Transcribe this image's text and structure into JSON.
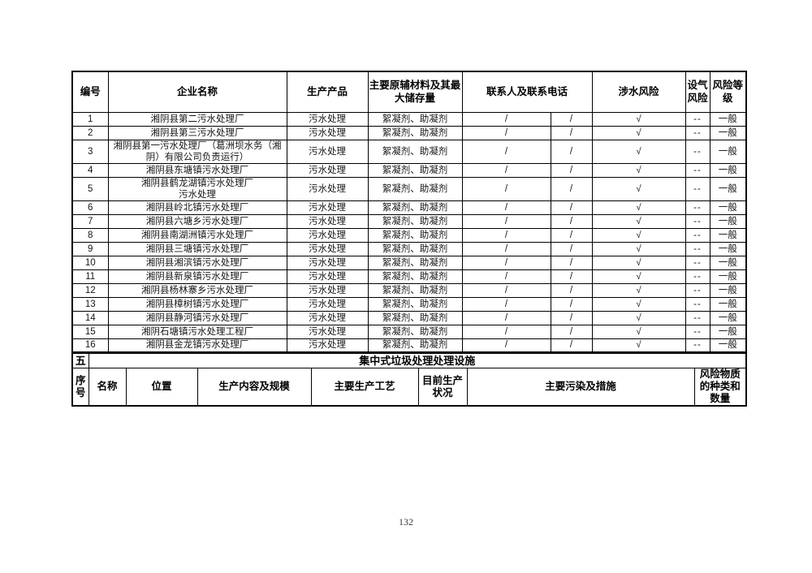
{
  "page": {
    "number": "132"
  },
  "company_table": {
    "headers": {
      "no": "编号",
      "company": "企业名称",
      "product": "生产产品",
      "materials": "主要原辅材料及其最大储存量",
      "contact": "联系人及联系电话",
      "water_risk": "涉水风险",
      "gas_risk": "设气风险",
      "risk_level": "风险等级"
    },
    "rows": [
      {
        "no": "1",
        "company": "湘阴县第二污水处理厂",
        "product": "污水处理",
        "materials": "絮凝剂、助凝剂",
        "contact1": "/",
        "contact2": "/",
        "water": "√",
        "gas": "--",
        "level": "一般"
      },
      {
        "no": "2",
        "company": "湘阴县第三污水处理厂",
        "product": "污水处理",
        "materials": "絮凝剂、助凝剂",
        "contact1": "/",
        "contact2": "/",
        "water": "√",
        "gas": "--",
        "level": "一般"
      },
      {
        "no": "3",
        "company": "湘阴县第一污水处理厂（葛洲坝水务（湘阴）有限公司负责运行）",
        "product": "污水处理",
        "materials": "絮凝剂、助凝剂",
        "contact1": "/",
        "contact2": "/",
        "water": "√",
        "gas": "--",
        "level": "一般"
      },
      {
        "no": "4",
        "company": "湘阴县东塘镇污水处理厂",
        "product": "污水处理",
        "materials": "絮凝剂、助凝剂",
        "contact1": "/",
        "contact2": "/",
        "water": "√",
        "gas": "--",
        "level": "一般"
      },
      {
        "no": "5",
        "company": "湘阴县鹤龙湖镇污水处理厂",
        "company_line2": "污水处理",
        "product": "污水处理",
        "materials": "絮凝剂、助凝剂",
        "contact1": "/",
        "contact2": "/",
        "water": "√",
        "gas": "--",
        "level": "一般"
      },
      {
        "no": "6",
        "company": "湘阴县岭北镇污水处理厂",
        "product": "污水处理",
        "materials": "絮凝剂、助凝剂",
        "contact1": "/",
        "contact2": "/",
        "water": "√",
        "gas": "--",
        "level": "一般"
      },
      {
        "no": "7",
        "company": "湘阴县六塘乡污水处理厂",
        "product": "污水处理",
        "materials": "絮凝剂、助凝剂",
        "contact1": "/",
        "contact2": "/",
        "water": "√",
        "gas": "--",
        "level": "一般"
      },
      {
        "no": "8",
        "company": "湘阴县南湖洲镇污水处理厂",
        "product": "污水处理",
        "materials": "絮凝剂、助凝剂",
        "contact1": "/",
        "contact2": "/",
        "water": "√",
        "gas": "--",
        "level": "一般"
      },
      {
        "no": "9",
        "company": "湘阴县三塘镇污水处理厂",
        "product": "污水处理",
        "materials": "絮凝剂、助凝剂",
        "contact1": "/",
        "contact2": "/",
        "water": "√",
        "gas": "--",
        "level": "一般"
      },
      {
        "no": "10",
        "company": "湘阴县湘滨镇污水处理厂",
        "product": "污水处理",
        "materials": "絮凝剂、助凝剂",
        "contact1": "/",
        "contact2": "/",
        "water": "√",
        "gas": "--",
        "level": "一般"
      },
      {
        "no": "11",
        "company": "湘阴县新泉镇污水处理厂",
        "product": "污水处理",
        "materials": "絮凝剂、助凝剂",
        "contact1": "/",
        "contact2": "/",
        "water": "√",
        "gas": "--",
        "level": "一般"
      },
      {
        "no": "12",
        "company": "湘阴县杨林寨乡污水处理厂",
        "product": "污水处理",
        "materials": "絮凝剂、助凝剂",
        "contact1": "/",
        "contact2": "/",
        "water": "√",
        "gas": "--",
        "level": "一般"
      },
      {
        "no": "13",
        "company": "湘阴县樟树镇污水处理厂",
        "product": "污水处理",
        "materials": "絮凝剂、助凝剂",
        "contact1": "/",
        "contact2": "/",
        "water": "√",
        "gas": "--",
        "level": "一般"
      },
      {
        "no": "14",
        "company": "湘阴县静河镇污水处理厂",
        "product": "污水处理",
        "materials": "絮凝剂、助凝剂",
        "contact1": "/",
        "contact2": "/",
        "water": "√",
        "gas": "--",
        "level": "一般"
      },
      {
        "no": "15",
        "company": "湘阴石塘镇污水处理工程厂",
        "product": "污水处理",
        "materials": "絮凝剂、助凝剂",
        "contact1": "/",
        "contact2": "/",
        "water": "√",
        "gas": "--",
        "level": "一般"
      },
      {
        "no": "16",
        "company": "湘阴县金龙镇污水处理厂",
        "product": "污水处理",
        "materials": "絮凝剂、助凝剂",
        "contact1": "/",
        "contact2": "/",
        "water": "√",
        "gas": "--",
        "level": "一般"
      }
    ]
  },
  "section5": {
    "index": "五",
    "title": "集中式垃圾处理处理设施"
  },
  "facility_table": {
    "headers": [
      "序号",
      "名称",
      "位置",
      "生产内容及规模",
      "主要生产工艺",
      "目前生产状况",
      "主要污染及措施",
      "风险物质的种类和数量"
    ]
  }
}
